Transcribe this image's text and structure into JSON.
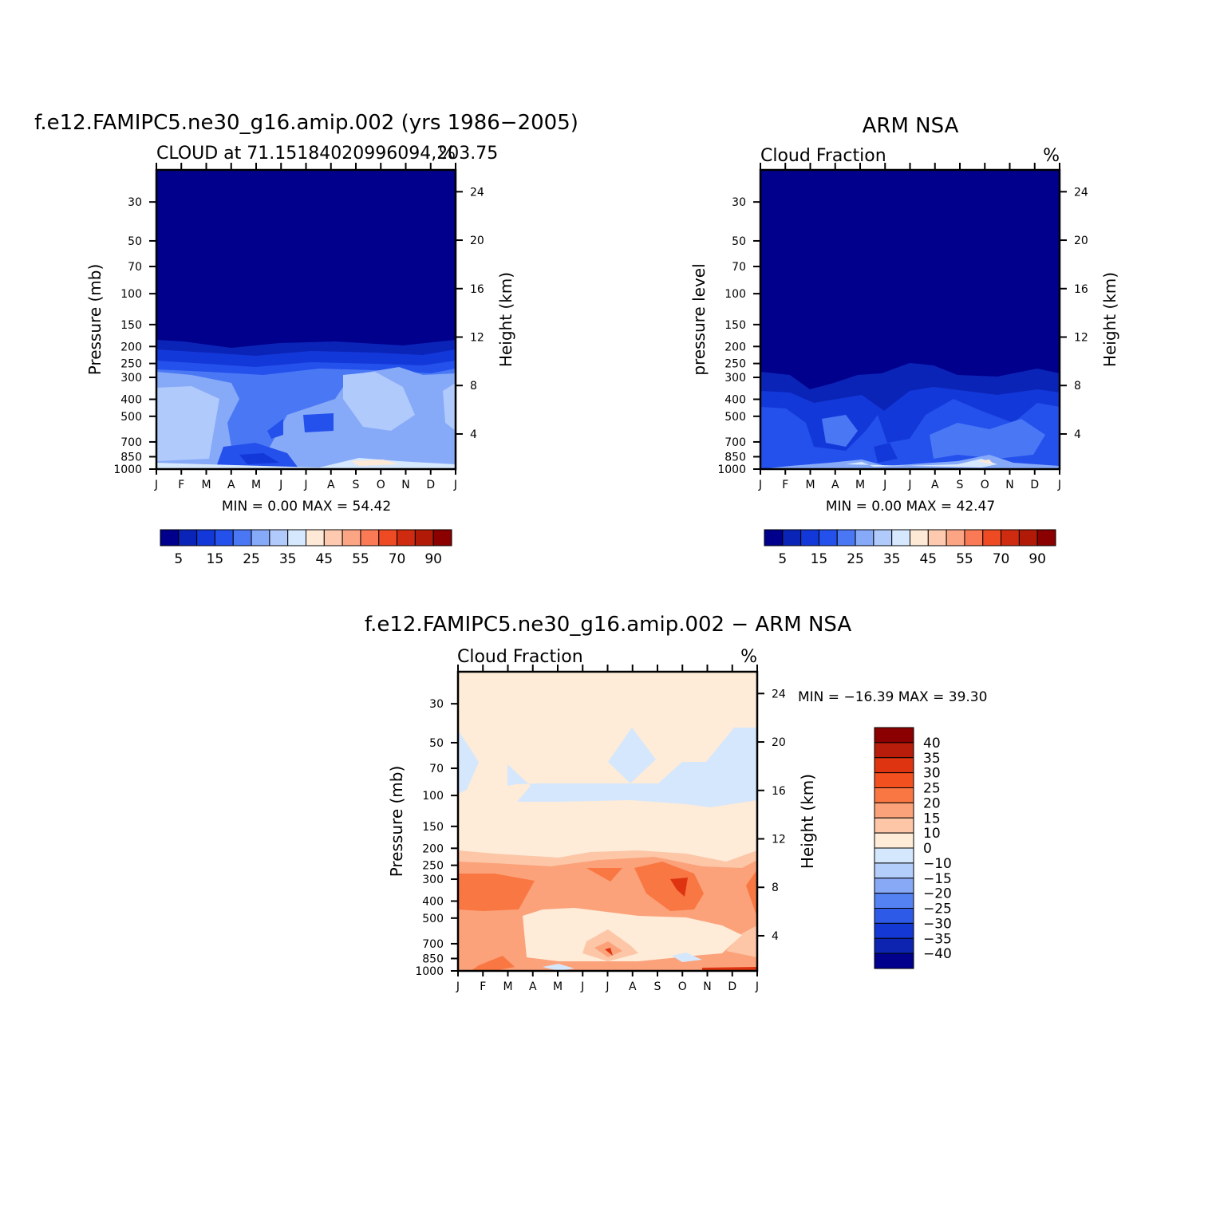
{
  "chart_data": [
    {
      "type": "heatmap",
      "id": "model",
      "title": "f.e12.FAMIPC5.ne30_g16.amip.002 (yrs 1986−2005)",
      "subtitle_left": "CLOUD at 71.15184020996094,203.75",
      "units": "%",
      "ylabel": "Pressure (mb)",
      "y2label": "Height (km)",
      "x_ticks": [
        "J",
        "F",
        "M",
        "A",
        "M",
        "J",
        "J",
        "A",
        "S",
        "O",
        "N",
        "D",
        "J"
      ],
      "y_ticks": [
        "30",
        "50",
        "70",
        "100",
        "150",
        "200",
        "250",
        "300",
        "400",
        "500",
        "700",
        "850",
        "1000"
      ],
      "y2_ticks": [
        "24",
        "20",
        "16",
        "12",
        "8",
        "4"
      ],
      "stats_text": "MIN =     0.00  MAX =    54.42",
      "min": 0.0,
      "max": 54.42,
      "colorbar_labels": [
        "5",
        "15",
        "25",
        "35",
        "45",
        "55",
        "70",
        "90"
      ],
      "colors": {
        "c0": "#00008C",
        "c1": "#0B24B8",
        "c2": "#1F4CE6",
        "c3": "#5D8AF8",
        "c4": "#8DB0FA",
        "c5": "#B5CEFB",
        "c6": "#D9E9FD",
        "c7": "#FFFFFF",
        "c8": "#FDE0C8"
      }
    },
    {
      "type": "heatmap",
      "id": "obs",
      "title": "ARM NSA",
      "subtitle_left": "Cloud Fraction",
      "units": "%",
      "ylabel": "pressure level",
      "y2label": "Height (km)",
      "x_ticks": [
        "J",
        "F",
        "M",
        "A",
        "M",
        "J",
        "J",
        "A",
        "S",
        "O",
        "N",
        "D",
        "J"
      ],
      "y_ticks": [
        "30",
        "50",
        "70",
        "100",
        "150",
        "200",
        "250",
        "300",
        "400",
        "500",
        "700",
        "850",
        "1000"
      ],
      "y2_ticks": [
        "24",
        "20",
        "16",
        "12",
        "8",
        "4"
      ],
      "stats_text": "MIN =     0.00  MAX =    42.47",
      "min": 0.0,
      "max": 42.47,
      "colorbar_labels": [
        "5",
        "15",
        "25",
        "35",
        "45",
        "55",
        "70",
        "90"
      ]
    },
    {
      "type": "heatmap",
      "id": "diff",
      "title": "f.e12.FAMIPC5.ne30_g16.amip.002 − ARM NSA",
      "subtitle_left": "Cloud Fraction",
      "units": "%",
      "ylabel": "Pressure (mb)",
      "y2label": "Height (km)",
      "x_ticks": [
        "J",
        "F",
        "M",
        "A",
        "M",
        "J",
        "J",
        "A",
        "S",
        "O",
        "N",
        "D",
        "J"
      ],
      "y_ticks": [
        "30",
        "50",
        "70",
        "100",
        "150",
        "200",
        "250",
        "300",
        "400",
        "500",
        "700",
        "850",
        "1000"
      ],
      "y2_ticks": [
        "24",
        "20",
        "16",
        "12",
        "8",
        "4"
      ],
      "stats_text": "MIN =  −16.39  MAX =    39.30",
      "min": -16.39,
      "max": 39.3,
      "colorbar_labels": [
        "40",
        "35",
        "30",
        "25",
        "20",
        "15",
        "10",
        "0",
        "−10",
        "−15",
        "−20",
        "−25",
        "−30",
        "−35",
        "−40"
      ]
    }
  ],
  "palette_seq": [
    "#00008C",
    "#0B24B8",
    "#1338D9",
    "#2450EC",
    "#4A78F5",
    "#86A9F8",
    "#B0CAFB",
    "#D6E8FD",
    "#FEE8D6",
    "#FDCAB0",
    "#FCA585",
    "#F97A55",
    "#EE4A23",
    "#CF2B10",
    "#B21A08",
    "#8B0000"
  ],
  "palette_diff": [
    "#8B0000",
    "#B81C0A",
    "#DE3411",
    "#F2501F",
    "#F97743",
    "#FBA27A",
    "#FCC6A7",
    "#FEEBD8",
    "#D5E7FC",
    "#B3CEFA",
    "#88A9F6",
    "#5582F2",
    "#2E5AE8",
    "#1338D3",
    "#0C24B0",
    "#00008C"
  ]
}
